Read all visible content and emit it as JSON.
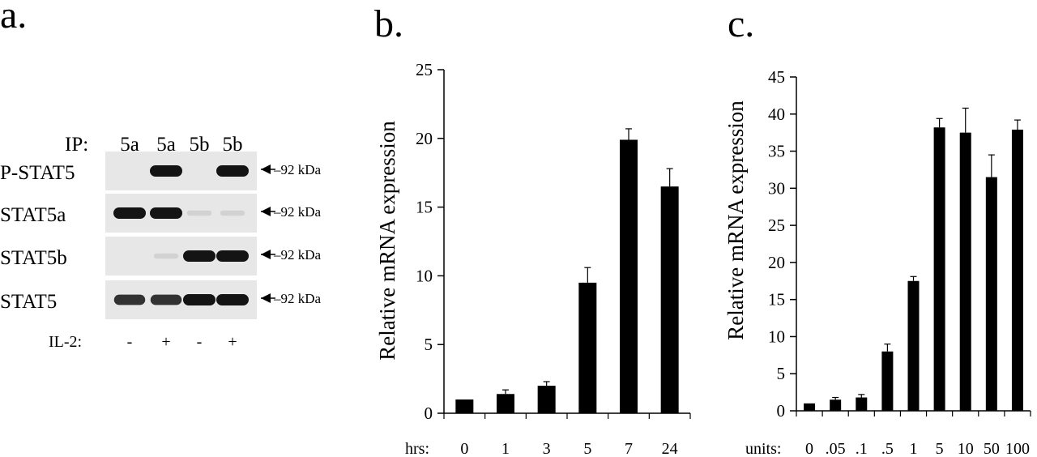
{
  "panels": {
    "a": {
      "letter": "a.",
      "ip_label": "IP:",
      "ip_lanes": [
        "5a",
        "5a",
        "5b",
        "5b"
      ],
      "rows": [
        {
          "label": "P-STAT5",
          "marker": "92 kDa",
          "band_intensity": [
            0.0,
            1.0,
            0.0,
            1.0
          ]
        },
        {
          "label": "STAT5a",
          "marker": "92 kDa",
          "band_intensity": [
            1.0,
            1.0,
            0.05,
            0.05
          ]
        },
        {
          "label": "STAT5b",
          "marker": "92 kDa",
          "band_intensity": [
            0.0,
            0.05,
            1.0,
            1.0
          ]
        },
        {
          "label": "STAT5",
          "marker": "92 kDa",
          "band_intensity": [
            0.85,
            0.85,
            1.0,
            1.0
          ]
        }
      ],
      "il2_label": "IL-2:",
      "il2_values": [
        "-",
        "+",
        "-",
        "+"
      ]
    }
  },
  "chart_data": [
    {
      "type": "bar",
      "panel_letter": "b.",
      "xlabel": "hrs:",
      "ylabel": "Relative mRNA expression",
      "categories": [
        "0",
        "1",
        "3",
        "5",
        "7",
        "24"
      ],
      "values": [
        1.0,
        1.4,
        2.0,
        9.5,
        19.9,
        16.5
      ],
      "errors": [
        0.0,
        0.3,
        0.3,
        1.1,
        0.8,
        1.3
      ],
      "ylim": [
        0,
        25
      ],
      "yticks": [
        0,
        5,
        10,
        15,
        20,
        25
      ],
      "grid": false,
      "bar_color": "#000000"
    },
    {
      "type": "bar",
      "panel_letter": "c.",
      "xlabel": "units:",
      "ylabel": "Relative mRNA expression",
      "categories": [
        "0",
        ".05",
        ".1",
        ".5",
        "1",
        "5",
        "10",
        "50",
        "100"
      ],
      "values": [
        1.0,
        1.5,
        1.8,
        8.0,
        17.5,
        38.2,
        37.5,
        31.5,
        37.9
      ],
      "errors": [
        0.0,
        0.3,
        0.4,
        1.0,
        0.6,
        1.2,
        3.3,
        3.0,
        1.3
      ],
      "ylim": [
        0,
        45
      ],
      "yticks": [
        0,
        5,
        10,
        15,
        20,
        25,
        30,
        35,
        40,
        45
      ],
      "grid": false,
      "bar_color": "#000000"
    }
  ]
}
